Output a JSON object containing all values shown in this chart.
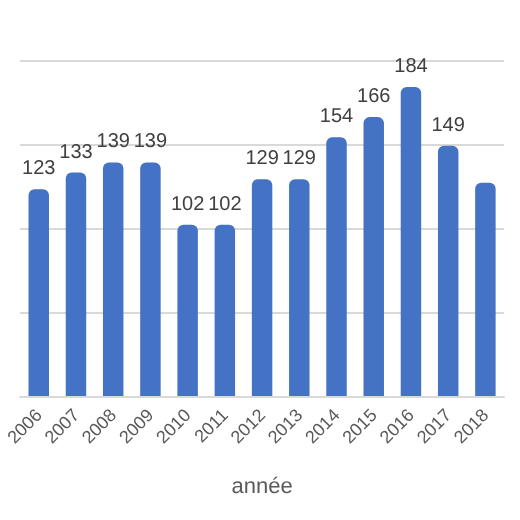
{
  "chart_data": {
    "type": "bar",
    "xlabel": "année",
    "categories": [
      "2006",
      "2007",
      "2008",
      "2009",
      "2010",
      "2011",
      "2012",
      "2013",
      "2014",
      "2015",
      "2016",
      "2017",
      "2018"
    ],
    "values": [
      123,
      133,
      139,
      139,
      102,
      102,
      129,
      129,
      154,
      166,
      184,
      149,
      127
    ],
    "value_labels": [
      "123",
      "133",
      "139",
      "139",
      "102",
      "102",
      "129",
      "129",
      "154",
      "166",
      "184",
      "149",
      null
    ],
    "color": "#4472c4",
    "ylim": [
      0,
      200
    ],
    "yticks": [
      {
        "value": 0,
        "label": null
      },
      {
        "value": 50,
        "label": null
      },
      {
        "value": 100,
        "label": null
      },
      {
        "value": 150,
        "label": null
      },
      {
        "value": 200,
        "label": null
      }
    ],
    "grid": "y",
    "tick_labels": "x"
  }
}
